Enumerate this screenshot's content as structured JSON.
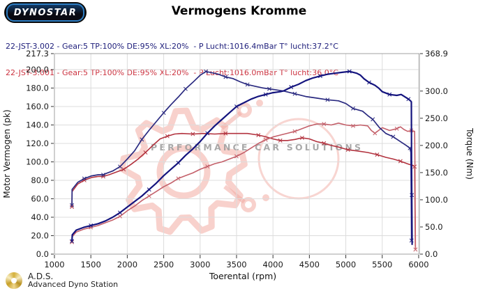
{
  "header": {
    "logo_text": "DYNOSTAR",
    "title": "Vermogens Kromme",
    "runs": [
      {
        "id": "22-JST-3.002",
        "info": " - Gear:5 TP:100% DE:95% XL:20%  - P Lucht:1016.4mBar T° lucht:37.2°C",
        "color": "#20207c"
      },
      {
        "id": "22-JST-3.001",
        "info": " - Gear:5 TP:100% DE:95% XL:20%  - P Lucht:1016.0mBar T° lucht:36.0°C",
        "color": "#cc3340"
      }
    ]
  },
  "watermark": {
    "text": "PERFORMANCE CAR SOLUTIONS",
    "text_color": "#9b9b9b",
    "logo_color": "#f2aba3"
  },
  "footer": {
    "abbr": "A.D.S.",
    "name": "Advanced Dyno Station"
  },
  "chart_data": {
    "type": "line",
    "title": "Vermogens Kromme",
    "xlabel": "Toerental (rpm)",
    "ylabel_left": "Motor Vermogen (pk)",
    "ylabel_right": "Torque (Nm)",
    "grid": true,
    "x_range": [
      1000,
      6010
    ],
    "y_left_range": [
      0,
      217.3
    ],
    "y_right_range": [
      0,
      368.9
    ],
    "x_ticks": [
      1000,
      1500,
      2000,
      2500,
      3000,
      3500,
      4000,
      4500,
      5000,
      5500,
      6000
    ],
    "y_left_ticks": [
      217.3,
      200.0,
      180.0,
      160.0,
      140.0,
      120.0,
      100.0,
      80.0,
      60.0,
      40.0,
      20.0,
      0.0
    ],
    "y_right_ticks": [
      368.9,
      300.0,
      250.0,
      200.0,
      150.0,
      100.0,
      50.0,
      0.0
    ],
    "series": [
      {
        "name": "torque-22-JST-3.001",
        "axis": "right",
        "unit": "Nm",
        "color": "#b2323e",
        "width": 1.6,
        "markers": true,
        "points": [
          [
            1240,
            87
          ],
          [
            1242,
            115
          ],
          [
            1320,
            129
          ],
          [
            1410,
            136
          ],
          [
            1510,
            141
          ],
          [
            1600,
            143
          ],
          [
            1670,
            143
          ],
          [
            1750,
            146
          ],
          [
            1850,
            151
          ],
          [
            1950,
            156
          ],
          [
            2050,
            165
          ],
          [
            2150,
            175
          ],
          [
            2250,
            187
          ],
          [
            2350,
            200
          ],
          [
            2450,
            212
          ],
          [
            2550,
            217
          ],
          [
            2650,
            221
          ],
          [
            2750,
            222
          ],
          [
            2900,
            221
          ],
          [
            3050,
            222
          ],
          [
            3200,
            221
          ],
          [
            3350,
            222
          ],
          [
            3500,
            222
          ],
          [
            3650,
            222
          ],
          [
            3800,
            219
          ],
          [
            3900,
            216
          ],
          [
            4000,
            212
          ],
          [
            4100,
            209
          ],
          [
            4200,
            209
          ],
          [
            4300,
            211
          ],
          [
            4400,
            214
          ],
          [
            4500,
            212
          ],
          [
            4600,
            207
          ],
          [
            4700,
            204
          ],
          [
            4800,
            200
          ],
          [
            4900,
            197
          ],
          [
            5030,
            192
          ],
          [
            5150,
            190
          ],
          [
            5300,
            187
          ],
          [
            5430,
            183
          ],
          [
            5550,
            178
          ],
          [
            5650,
            175
          ],
          [
            5750,
            171
          ],
          [
            5850,
            166
          ],
          [
            5920,
            163
          ],
          [
            5945,
            161
          ],
          [
            5950,
            85
          ],
          [
            5954,
            14
          ]
        ]
      },
      {
        "name": "power-22-JST-3.001",
        "axis": "left",
        "unit": "pk",
        "color": "#c4606a",
        "width": 1.6,
        "markers": true,
        "points": [
          [
            1240,
            13
          ],
          [
            1245,
            19
          ],
          [
            1300,
            24
          ],
          [
            1400,
            27
          ],
          [
            1500,
            29
          ],
          [
            1600,
            31
          ],
          [
            1700,
            34
          ],
          [
            1800,
            37
          ],
          [
            1900,
            41
          ],
          [
            2000,
            47
          ],
          [
            2100,
            52
          ],
          [
            2200,
            58
          ],
          [
            2300,
            63
          ],
          [
            2400,
            68
          ],
          [
            2500,
            73
          ],
          [
            2600,
            77
          ],
          [
            2700,
            82
          ],
          [
            2800,
            85
          ],
          [
            2900,
            88
          ],
          [
            3000,
            92
          ],
          [
            3100,
            95
          ],
          [
            3200,
            98
          ],
          [
            3300,
            100
          ],
          [
            3400,
            103
          ],
          [
            3500,
            106
          ],
          [
            3600,
            110
          ],
          [
            3700,
            115
          ],
          [
            3800,
            120
          ],
          [
            3900,
            124
          ],
          [
            4000,
            127
          ],
          [
            4100,
            129
          ],
          [
            4200,
            131
          ],
          [
            4300,
            133
          ],
          [
            4400,
            136
          ],
          [
            4500,
            139
          ],
          [
            4600,
            141
          ],
          [
            4700,
            141
          ],
          [
            4800,
            140
          ],
          [
            4900,
            142
          ],
          [
            5000,
            140
          ],
          [
            5100,
            139
          ],
          [
            5200,
            140
          ],
          [
            5300,
            139
          ],
          [
            5350,
            134
          ],
          [
            5400,
            131
          ],
          [
            5450,
            134
          ],
          [
            5500,
            137
          ],
          [
            5600,
            134
          ],
          [
            5700,
            136
          ],
          [
            5750,
            138
          ],
          [
            5800,
            135
          ],
          [
            5850,
            133
          ],
          [
            5900,
            134
          ],
          [
            5945,
            133
          ],
          [
            5950,
            90
          ],
          [
            5953,
            47
          ],
          [
            5956,
            5
          ]
        ]
      },
      {
        "name": "torque-22-JST-3.002",
        "axis": "right",
        "unit": "Nm",
        "color": "#2a2a80",
        "width": 1.7,
        "markers": true,
        "points": [
          [
            1240,
            90
          ],
          [
            1242,
            119
          ],
          [
            1320,
            132
          ],
          [
            1410,
            139
          ],
          [
            1510,
            144
          ],
          [
            1600,
            146
          ],
          [
            1670,
            146
          ],
          [
            1720,
            149
          ],
          [
            1800,
            153
          ],
          [
            1900,
            161
          ],
          [
            2000,
            175
          ],
          [
            2100,
            190
          ],
          [
            2200,
            211
          ],
          [
            2300,
            228
          ],
          [
            2400,
            244
          ],
          [
            2500,
            260
          ],
          [
            2600,
            275
          ],
          [
            2700,
            289
          ],
          [
            2800,
            304
          ],
          [
            2900,
            316
          ],
          [
            3000,
            329
          ],
          [
            3080,
            336
          ],
          [
            3150,
            334
          ],
          [
            3250,
            331
          ],
          [
            3350,
            326
          ],
          [
            3450,
            323
          ],
          [
            3550,
            317
          ],
          [
            3650,
            312
          ],
          [
            3750,
            309
          ],
          [
            3850,
            306
          ],
          [
            3950,
            304
          ],
          [
            4050,
            302
          ],
          [
            4150,
            300
          ],
          [
            4300,
            295
          ],
          [
            4450,
            290
          ],
          [
            4600,
            287
          ],
          [
            4750,
            284
          ],
          [
            4900,
            282
          ],
          [
            5000,
            277
          ],
          [
            5100,
            268
          ],
          [
            5230,
            263
          ],
          [
            5300,
            255
          ],
          [
            5370,
            248
          ],
          [
            5460,
            233
          ],
          [
            5550,
            222
          ],
          [
            5650,
            216
          ],
          [
            5750,
            207
          ],
          [
            5830,
            200
          ],
          [
            5880,
            195
          ],
          [
            5893,
            187
          ],
          [
            5898,
            102
          ],
          [
            5902,
            25
          ]
        ]
      },
      {
        "name": "power-22-JST-3.002",
        "axis": "left",
        "unit": "pk",
        "color": "#14147e",
        "width": 2.2,
        "markers": true,
        "points": [
          [
            1240,
            14
          ],
          [
            1245,
            21
          ],
          [
            1300,
            26
          ],
          [
            1400,
            29
          ],
          [
            1500,
            31
          ],
          [
            1600,
            33
          ],
          [
            1700,
            36
          ],
          [
            1800,
            40
          ],
          [
            1900,
            45
          ],
          [
            2000,
            51
          ],
          [
            2100,
            57
          ],
          [
            2200,
            63
          ],
          [
            2300,
            70
          ],
          [
            2400,
            77
          ],
          [
            2500,
            85
          ],
          [
            2600,
            92
          ],
          [
            2700,
            99
          ],
          [
            2800,
            107
          ],
          [
            2900,
            114
          ],
          [
            3000,
            122
          ],
          [
            3100,
            131
          ],
          [
            3200,
            139
          ],
          [
            3300,
            146
          ],
          [
            3400,
            153
          ],
          [
            3500,
            160
          ],
          [
            3600,
            164
          ],
          [
            3700,
            168
          ],
          [
            3800,
            171
          ],
          [
            3900,
            173
          ],
          [
            4000,
            175
          ],
          [
            4100,
            176
          ],
          [
            4150,
            177
          ],
          [
            4250,
            181
          ],
          [
            4350,
            184
          ],
          [
            4450,
            188
          ],
          [
            4550,
            191
          ],
          [
            4650,
            193
          ],
          [
            4750,
            195
          ],
          [
            4850,
            196
          ],
          [
            4950,
            197
          ],
          [
            5050,
            198
          ],
          [
            5150,
            196
          ],
          [
            5200,
            194
          ],
          [
            5250,
            190
          ],
          [
            5320,
            186
          ],
          [
            5400,
            183
          ],
          [
            5450,
            180
          ],
          [
            5500,
            176
          ],
          [
            5600,
            173
          ],
          [
            5700,
            172
          ],
          [
            5760,
            173
          ],
          [
            5820,
            170
          ],
          [
            5860,
            168
          ],
          [
            5890,
            166
          ],
          [
            5900,
            165
          ],
          [
            5903,
            100
          ],
          [
            5906,
            64
          ],
          [
            5910,
            10
          ]
        ]
      }
    ]
  }
}
